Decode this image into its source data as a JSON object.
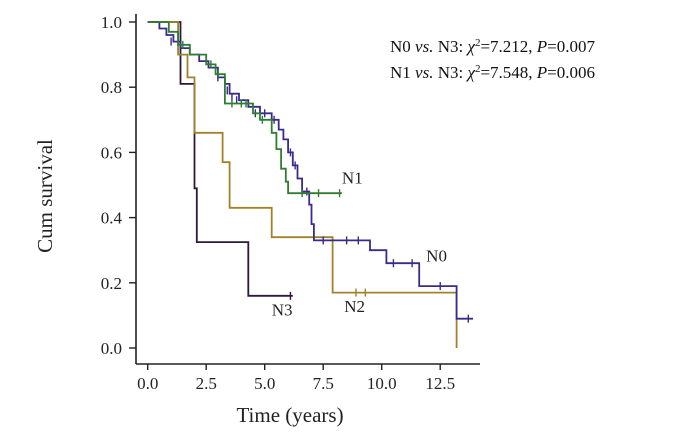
{
  "chart_data": {
    "type": "line",
    "subtype": "kaplan-meier step",
    "title": "",
    "xlabel": "Time (years)",
    "ylabel": "Cum survival",
    "xlim": [
      -0.5,
      14.2
    ],
    "ylim": [
      0.0,
      1.0
    ],
    "xticks": [
      0.0,
      2.5,
      5.0,
      7.5,
      10.0,
      12.5
    ],
    "xtick_labels": [
      "0.0",
      "2.5",
      "5.0",
      "7.5",
      "10.0",
      "12.5"
    ],
    "yticks": [
      0.0,
      0.2,
      0.4,
      0.6,
      0.8,
      1.0
    ],
    "ytick_labels": [
      "0.0",
      "0.2",
      "0.4",
      "0.6",
      "0.8",
      "1.0"
    ],
    "grid": false,
    "annotations": [
      {
        "line": [
          "N0 ",
          "vs.",
          " N3: ",
          "χ",
          "2",
          "=7.212, ",
          "P",
          "=0.007"
        ]
      },
      {
        "line": [
          "N1 ",
          "vs.",
          " N3: ",
          "χ",
          "2",
          "=7.548, ",
          "P",
          "=0.006"
        ]
      }
    ],
    "series": [
      {
        "name": "N0",
        "color": "#3a2a8c",
        "label_at": [
          11.9,
          0.265
        ],
        "steps": [
          [
            0.0,
            1.0
          ],
          [
            0.5,
            0.98
          ],
          [
            0.8,
            0.96
          ],
          [
            1.1,
            0.94
          ],
          [
            1.4,
            0.92
          ],
          [
            1.8,
            0.9
          ],
          [
            2.2,
            0.88
          ],
          [
            2.6,
            0.86
          ],
          [
            3.0,
            0.83
          ],
          [
            3.3,
            0.81
          ],
          [
            3.5,
            0.78
          ],
          [
            3.9,
            0.76
          ],
          [
            4.3,
            0.74
          ],
          [
            4.8,
            0.72
          ],
          [
            5.3,
            0.7
          ],
          [
            5.6,
            0.67
          ],
          [
            5.8,
            0.64
          ],
          [
            6.0,
            0.6
          ],
          [
            6.2,
            0.56
          ],
          [
            6.4,
            0.52
          ],
          [
            6.6,
            0.48
          ],
          [
            6.9,
            0.44
          ],
          [
            7.0,
            0.38
          ],
          [
            7.1,
            0.33
          ],
          [
            8.0,
            0.33
          ],
          [
            9.5,
            0.3
          ],
          [
            10.2,
            0.26
          ],
          [
            11.6,
            0.19
          ],
          [
            13.2,
            0.09
          ]
        ],
        "end": 13.9,
        "censor": [
          [
            1.0,
            0.94
          ],
          [
            3.0,
            0.83
          ],
          [
            3.4,
            0.79
          ],
          [
            3.6,
            0.77
          ],
          [
            3.8,
            0.76
          ],
          [
            4.6,
            0.72
          ],
          [
            5.0,
            0.72
          ],
          [
            5.4,
            0.7
          ],
          [
            6.1,
            0.6
          ],
          [
            6.3,
            0.56
          ],
          [
            6.8,
            0.48
          ],
          [
            7.5,
            0.33
          ],
          [
            8.5,
            0.33
          ],
          [
            9.0,
            0.33
          ],
          [
            10.5,
            0.26
          ],
          [
            11.3,
            0.26
          ],
          [
            12.5,
            0.19
          ],
          [
            13.7,
            0.09
          ]
        ]
      },
      {
        "name": "N1",
        "color": "#2e7d32",
        "label_at": [
          8.3,
          0.505
        ],
        "steps": [
          [
            0.0,
            1.0
          ],
          [
            0.9,
            0.97
          ],
          [
            1.3,
            0.93
          ],
          [
            1.8,
            0.9
          ],
          [
            2.5,
            0.87
          ],
          [
            2.9,
            0.84
          ],
          [
            3.3,
            0.75
          ],
          [
            4.5,
            0.72
          ],
          [
            4.8,
            0.7
          ],
          [
            5.3,
            0.66
          ],
          [
            5.5,
            0.61
          ],
          [
            5.7,
            0.55
          ],
          [
            5.9,
            0.51
          ],
          [
            6.0,
            0.475
          ]
        ],
        "end": 8.3,
        "censor": [
          [
            1.5,
            0.93
          ],
          [
            2.7,
            0.87
          ],
          [
            3.0,
            0.84
          ],
          [
            3.6,
            0.75
          ],
          [
            4.0,
            0.75
          ],
          [
            4.2,
            0.75
          ],
          [
            4.9,
            0.7
          ],
          [
            6.6,
            0.475
          ],
          [
            7.3,
            0.475
          ],
          [
            8.2,
            0.475
          ]
        ]
      },
      {
        "name": "N2",
        "color": "#a0822a",
        "label_at": [
          8.4,
          0.11
        ],
        "steps": [
          [
            0.0,
            1.0
          ],
          [
            1.3,
            0.9
          ],
          [
            1.7,
            0.83
          ],
          [
            2.0,
            0.66
          ],
          [
            3.2,
            0.57
          ],
          [
            3.5,
            0.43
          ],
          [
            5.3,
            0.34
          ],
          [
            7.9,
            0.17
          ],
          [
            13.2,
            0.0
          ]
        ],
        "end": 13.2,
        "censor": [
          [
            8.9,
            0.17
          ],
          [
            9.3,
            0.17
          ]
        ]
      },
      {
        "name": "N3",
        "color": "#2c1a3a",
        "label_at": [
          5.3,
          0.1
        ],
        "steps": [
          [
            0.0,
            1.0
          ],
          [
            1.4,
            0.81
          ],
          [
            2.0,
            0.49
          ],
          [
            2.1,
            0.325
          ],
          [
            4.3,
            0.16
          ]
        ],
        "end": 6.2,
        "censor": [
          [
            6.1,
            0.16
          ]
        ]
      }
    ]
  }
}
